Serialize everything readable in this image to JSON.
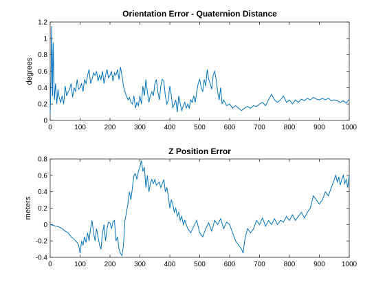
{
  "chart_data": [
    {
      "type": "line",
      "title": "Orientation Error - Quaternion Distance",
      "xlabel": "",
      "ylabel": "degrees",
      "xlim": [
        0,
        1000
      ],
      "ylim": [
        0,
        1.2
      ],
      "xticks": [
        0,
        100,
        200,
        300,
        400,
        500,
        600,
        700,
        800,
        900,
        1000
      ],
      "xticklabels": [
        "0",
        "100",
        "200",
        "300",
        "400",
        "500",
        "600",
        "700",
        "800",
        "900",
        "1000"
      ],
      "yticks": [
        0,
        0.2,
        0.4,
        0.6,
        0.8,
        1,
        1.2
      ],
      "yticklabels": [
        "0",
        "0.2",
        "0.4",
        "0.6",
        "0.8",
        "1",
        "1.2"
      ],
      "grid": false,
      "line_color": "#0072BD",
      "series": [
        {
          "x": [
            0,
            3,
            5,
            8,
            10,
            14,
            18,
            22,
            26,
            30,
            35,
            40,
            45,
            50,
            55,
            60,
            65,
            70,
            75,
            80,
            85,
            90,
            95,
            100,
            105,
            110,
            115,
            120,
            125,
            130,
            135,
            140,
            145,
            150,
            155,
            160,
            165,
            170,
            175,
            180,
            185,
            190,
            195,
            200,
            205,
            210,
            215,
            220,
            225,
            230,
            235,
            240,
            245,
            250,
            255,
            260,
            265,
            270,
            275,
            280,
            285,
            290,
            295,
            300,
            305,
            310,
            315,
            320,
            325,
            330,
            335,
            340,
            345,
            350,
            355,
            360,
            365,
            370,
            375,
            380,
            385,
            390,
            395,
            400,
            405,
            410,
            415,
            420,
            425,
            430,
            435,
            440,
            445,
            450,
            455,
            460,
            465,
            470,
            475,
            480,
            485,
            490,
            495,
            500,
            505,
            510,
            515,
            520,
            525,
            530,
            535,
            540,
            545,
            550,
            555,
            560,
            565,
            570,
            575,
            580,
            590,
            600,
            610,
            620,
            630,
            640,
            650,
            660,
            670,
            680,
            690,
            700,
            710,
            720,
            730,
            740,
            750,
            760,
            770,
            780,
            790,
            800,
            810,
            820,
            830,
            840,
            850,
            860,
            870,
            880,
            890,
            900,
            910,
            920,
            930,
            940,
            950,
            960,
            970,
            980,
            990,
            1000
          ],
          "values": [
            0.08,
            0.5,
            1.15,
            0.3,
            0.95,
            0.25,
            0.45,
            0.2,
            0.38,
            0.28,
            0.22,
            0.3,
            0.2,
            0.42,
            0.3,
            0.35,
            0.38,
            0.45,
            0.28,
            0.4,
            0.35,
            0.5,
            0.38,
            0.4,
            0.45,
            0.35,
            0.5,
            0.45,
            0.55,
            0.62,
            0.45,
            0.5,
            0.58,
            0.55,
            0.6,
            0.48,
            0.55,
            0.5,
            0.6,
            0.45,
            0.55,
            0.62,
            0.52,
            0.55,
            0.6,
            0.48,
            0.58,
            0.55,
            0.62,
            0.5,
            0.65,
            0.55,
            0.42,
            0.35,
            0.3,
            0.25,
            0.28,
            0.22,
            0.2,
            0.3,
            0.15,
            0.22,
            0.18,
            0.3,
            0.2,
            0.42,
            0.3,
            0.5,
            0.35,
            0.22,
            0.3,
            0.35,
            0.3,
            0.45,
            0.5,
            0.35,
            0.25,
            0.42,
            0.5,
            0.48,
            0.3,
            0.2,
            0.25,
            0.42,
            0.3,
            0.15,
            0.2,
            0.25,
            0.1,
            0.3,
            0.2,
            0.12,
            0.18,
            0.22,
            0.15,
            0.2,
            0.15,
            0.25,
            0.22,
            0.3,
            0.22,
            0.35,
            0.45,
            0.5,
            0.4,
            0.35,
            0.5,
            0.42,
            0.62,
            0.5,
            0.45,
            0.38,
            0.55,
            0.6,
            0.5,
            0.35,
            0.25,
            0.4,
            0.2,
            0.25,
            0.18,
            0.2,
            0.15,
            0.18,
            0.15,
            0.12,
            0.15,
            0.17,
            0.15,
            0.18,
            0.17,
            0.2,
            0.22,
            0.18,
            0.25,
            0.32,
            0.25,
            0.22,
            0.25,
            0.3,
            0.22,
            0.25,
            0.2,
            0.25,
            0.22,
            0.26,
            0.24,
            0.27,
            0.25,
            0.28,
            0.26,
            0.25,
            0.27,
            0.25,
            0.27,
            0.24,
            0.25,
            0.24,
            0.22,
            0.24,
            0.21,
            0.26
          ]
        }
      ]
    },
    {
      "type": "line",
      "title": "Z Position Error",
      "xlabel": "",
      "ylabel": "meters",
      "xlim": [
        0,
        1000
      ],
      "ylim": [
        -0.4,
        0.8
      ],
      "xticks": [
        0,
        100,
        200,
        300,
        400,
        500,
        600,
        700,
        800,
        900,
        1000
      ],
      "xticklabels": [
        "0",
        "100",
        "200",
        "300",
        "400",
        "500",
        "600",
        "700",
        "800",
        "900",
        "1000"
      ],
      "yticks": [
        -0.4,
        -0.2,
        0,
        0.2,
        0.4,
        0.6,
        0.8
      ],
      "yticklabels": [
        "-0.4",
        "-0.2",
        "0",
        "0.2",
        "0.4",
        "0.6",
        "0.8"
      ],
      "grid": false,
      "line_color": "#0072BD",
      "series": [
        {
          "x": [
            0,
            10,
            20,
            30,
            40,
            50,
            60,
            70,
            80,
            90,
            95,
            100,
            105,
            110,
            115,
            120,
            125,
            130,
            135,
            140,
            145,
            150,
            155,
            160,
            165,
            170,
            175,
            180,
            185,
            190,
            195,
            200,
            205,
            210,
            215,
            220,
            225,
            230,
            235,
            240,
            245,
            250,
            255,
            260,
            265,
            270,
            275,
            280,
            285,
            290,
            295,
            300,
            305,
            310,
            315,
            320,
            325,
            330,
            335,
            340,
            345,
            350,
            355,
            360,
            365,
            370,
            375,
            380,
            385,
            390,
            395,
            400,
            405,
            410,
            415,
            420,
            425,
            430,
            435,
            440,
            445,
            450,
            460,
            470,
            480,
            490,
            500,
            510,
            520,
            530,
            540,
            550,
            560,
            570,
            580,
            590,
            600,
            610,
            620,
            630,
            640,
            645,
            650,
            655,
            660,
            670,
            680,
            690,
            700,
            710,
            720,
            730,
            740,
            750,
            760,
            770,
            780,
            790,
            800,
            810,
            820,
            830,
            840,
            850,
            860,
            870,
            880,
            890,
            900,
            910,
            920,
            930,
            940,
            945,
            950,
            955,
            960,
            965,
            970,
            975,
            980,
            985,
            990,
            995,
            1000
          ],
          "values": [
            0,
            -0.01,
            -0.02,
            -0.03,
            -0.05,
            -0.08,
            -0.1,
            -0.15,
            -0.18,
            -0.22,
            -0.25,
            -0.35,
            -0.2,
            -0.25,
            -0.15,
            -0.22,
            -0.1,
            -0.2,
            -0.05,
            0.05,
            -0.1,
            -0.2,
            -0.05,
            -0.15,
            -0.25,
            -0.3,
            -0.1,
            0.0,
            -0.2,
            -0.05,
            0.03,
            0.02,
            -0.05,
            0.03,
            0.05,
            -0.2,
            -0.15,
            -0.3,
            -0.35,
            -0.38,
            -0.25,
            0.05,
            0.15,
            0.25,
            0.4,
            0.3,
            0.45,
            0.6,
            0.62,
            0.55,
            0.65,
            0.7,
            0.78,
            0.65,
            0.7,
            0.45,
            0.6,
            0.4,
            0.5,
            0.55,
            0.5,
            0.55,
            0.48,
            0.5,
            0.52,
            0.45,
            0.5,
            0.55,
            0.4,
            0.45,
            0.35,
            0.2,
            0.3,
            0.25,
            0.15,
            0.2,
            0.1,
            0.15,
            0.05,
            0.1,
            0.0,
            0.05,
            -0.05,
            -0.1,
            -0.02,
            0.05,
            -0.1,
            -0.15,
            -0.05,
            0.02,
            -0.08,
            0.05,
            0.0,
            0.07,
            -0.05,
            0.03,
            0.0,
            -0.1,
            -0.2,
            -0.25,
            -0.3,
            -0.35,
            -0.2,
            -0.12,
            -0.05,
            -0.1,
            -0.05,
            0.05,
            0.0,
            0.08,
            -0.02,
            0.05,
            0.0,
            0.07,
            0.0,
            0.05,
            0.03,
            0.1,
            0.05,
            0.12,
            0.05,
            0.1,
            0.15,
            0.08,
            0.15,
            0.2,
            0.35,
            0.3,
            0.25,
            0.3,
            0.4,
            0.35,
            0.45,
            0.5,
            0.55,
            0.6,
            0.52,
            0.58,
            0.48,
            0.55,
            0.6,
            0.5,
            0.55,
            0.45,
            0.6
          ]
        }
      ]
    }
  ]
}
